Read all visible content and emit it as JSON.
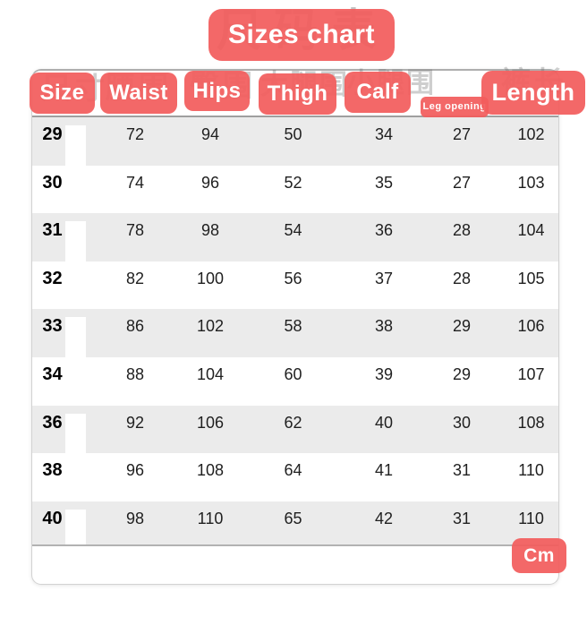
{
  "title": "Sizes chart",
  "unit": "Cm",
  "colors": {
    "accent": "#f25c5c",
    "row_alt": "#ebebeb",
    "card_border": "#b2b2b2"
  },
  "ghost_labels": {
    "title": "尺码表",
    "size": "尺寸",
    "waist": "腰围",
    "hips": "臀围",
    "thigh": "大腿围",
    "calf": "小腿围",
    "length": "裤长"
  },
  "chart_data": {
    "type": "table",
    "title": "Sizes chart",
    "unit": "Cm",
    "columns": [
      "Size",
      "Waist",
      "Hips",
      "Thigh",
      "Calf",
      "Leg opening",
      "Length"
    ],
    "rows": [
      [
        29,
        72,
        94,
        50,
        34,
        27,
        102
      ],
      [
        30,
        74,
        96,
        52,
        35,
        27,
        103
      ],
      [
        31,
        78,
        98,
        54,
        36,
        28,
        104
      ],
      [
        32,
        82,
        100,
        56,
        37,
        28,
        105
      ],
      [
        33,
        86,
        102,
        58,
        38,
        29,
        106
      ],
      [
        34,
        88,
        104,
        60,
        39,
        29,
        107
      ],
      [
        36,
        92,
        106,
        62,
        40,
        30,
        108
      ],
      [
        38,
        96,
        108,
        64,
        41,
        31,
        110
      ],
      [
        40,
        98,
        110,
        65,
        42,
        31,
        110
      ]
    ],
    "layout": {
      "striped": true,
      "stripe_pattern": "odd-rows-gray",
      "header_style": "red-sticker-labels"
    }
  }
}
